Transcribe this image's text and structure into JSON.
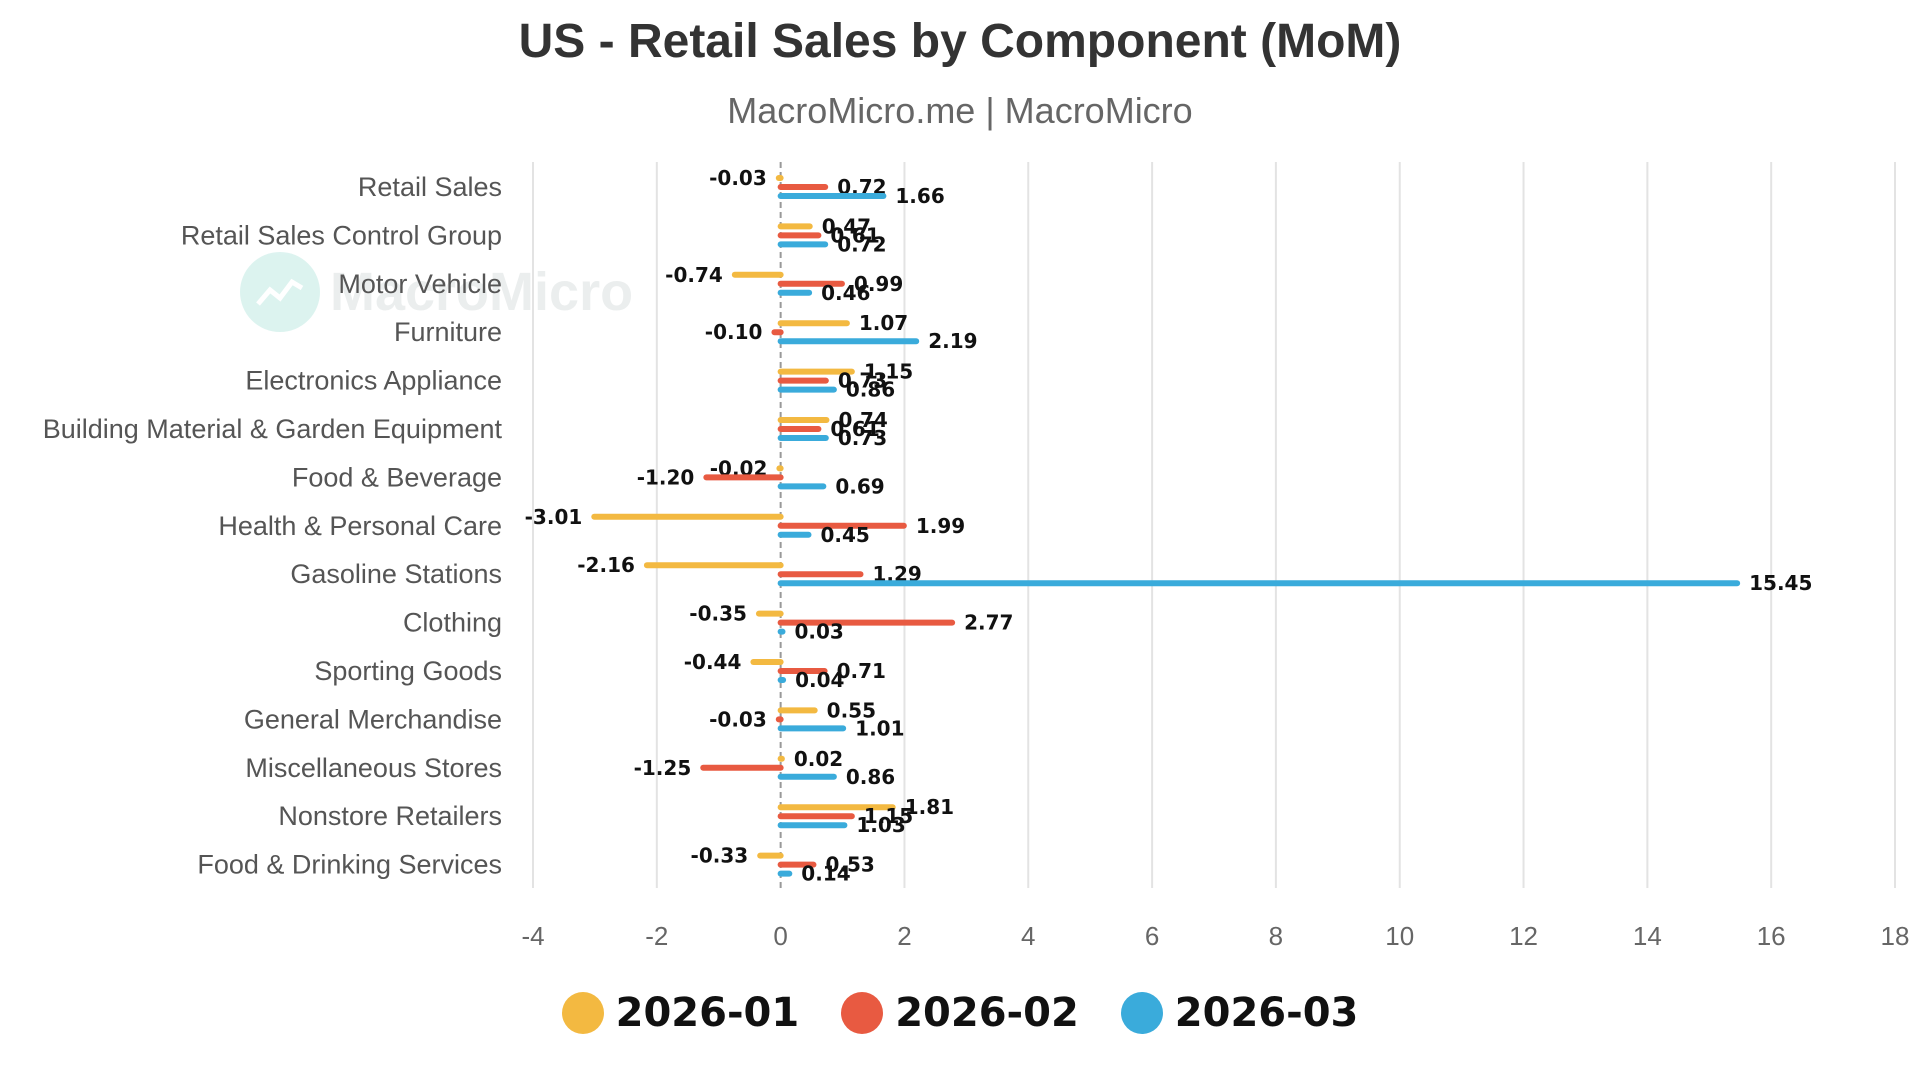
{
  "chart_data": {
    "type": "bar",
    "orientation": "horizontal",
    "title": "US - Retail Sales by Component (MoM)",
    "subtitle": "MacroMicro.me | MacroMicro",
    "watermark": "MacroMicro",
    "categories": [
      "Retail Sales",
      "Retail Sales Control Group",
      "Motor Vehicle",
      "Furniture",
      "Electronics Appliance",
      "Building Material & Garden Equipment",
      "Food & Beverage",
      "Health & Personal Care",
      "Gasoline Stations",
      "Clothing",
      "Sporting Goods",
      "General Merchandise",
      "Miscellaneous Stores",
      "Nonstore Retailers",
      "Food & Drinking Services"
    ],
    "series": [
      {
        "name": "2026-01",
        "color": "#f3b941",
        "values": [
          -0.03,
          0.47,
          -0.74,
          1.07,
          1.15,
          0.74,
          -0.02,
          -3.01,
          -2.16,
          -0.35,
          -0.44,
          0.55,
          0.02,
          1.81,
          -0.33
        ]
      },
      {
        "name": "2026-02",
        "color": "#e85a41",
        "values": [
          0.72,
          0.61,
          0.99,
          -0.1,
          0.73,
          0.61,
          -1.2,
          1.99,
          1.29,
          2.77,
          0.71,
          -0.03,
          -1.25,
          1.15,
          0.53
        ]
      },
      {
        "name": "2026-03",
        "color": "#3aabdb",
        "values": [
          1.66,
          0.72,
          0.46,
          2.19,
          0.86,
          0.73,
          0.69,
          0.45,
          15.45,
          0.03,
          0.04,
          1.01,
          0.86,
          1.03,
          0.14
        ]
      }
    ],
    "xlim": [
      -4,
      18
    ],
    "xticks": [
      "-4",
      "-2",
      "0",
      "2",
      "4",
      "6",
      "8",
      "10",
      "12",
      "14",
      "16",
      "18"
    ],
    "grid": true,
    "legend_position": "bottom"
  }
}
